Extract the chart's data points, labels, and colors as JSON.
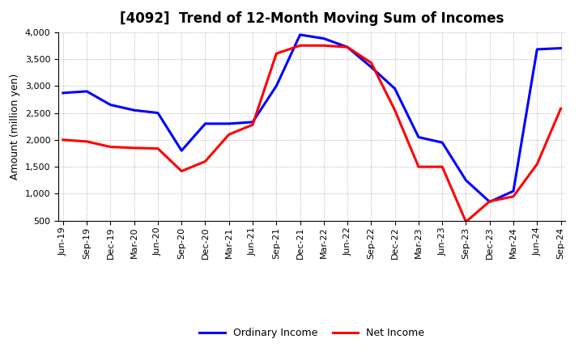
{
  "title": "[4092]  Trend of 12-Month Moving Sum of Incomes",
  "ylabel": "Amount (million yen)",
  "ylim": [
    500,
    4000
  ],
  "yticks": [
    500,
    1000,
    1500,
    2000,
    2500,
    3000,
    3500,
    4000
  ],
  "ordinary_income": {
    "label": "Ordinary Income",
    "color": "#0000FF",
    "values": [
      2870,
      2900,
      2650,
      2550,
      2500,
      1800,
      2300,
      2300,
      2330,
      3000,
      3950,
      3880,
      3720,
      3350,
      2950,
      2050,
      1950,
      1250,
      850,
      1050,
      3680,
      3700
    ]
  },
  "net_income": {
    "label": "Net Income",
    "color": "#FF0000",
    "values": [
      2000,
      1970,
      1870,
      1850,
      1840,
      1420,
      1600,
      2100,
      2280,
      3600,
      3750,
      3750,
      3720,
      3430,
      2550,
      1500,
      1500,
      480,
      860,
      950,
      1550,
      2580
    ]
  },
  "x_labels": [
    "Jun-19",
    "Sep-19",
    "Dec-19",
    "Mar-20",
    "Jun-20",
    "Sep-20",
    "Dec-20",
    "Mar-21",
    "Jun-21",
    "Sep-21",
    "Dec-21",
    "Mar-22",
    "Jun-22",
    "Sep-22",
    "Dec-22",
    "Mar-23",
    "Jun-23",
    "Sep-23",
    "Dec-23",
    "Mar-24",
    "Jun-24",
    "Sep-24"
  ],
  "background_color": "#ffffff",
  "grid_color": "#999999",
  "title_fontsize": 12,
  "axis_fontsize": 9,
  "tick_fontsize": 8,
  "legend_fontsize": 9,
  "line_width": 2.2
}
